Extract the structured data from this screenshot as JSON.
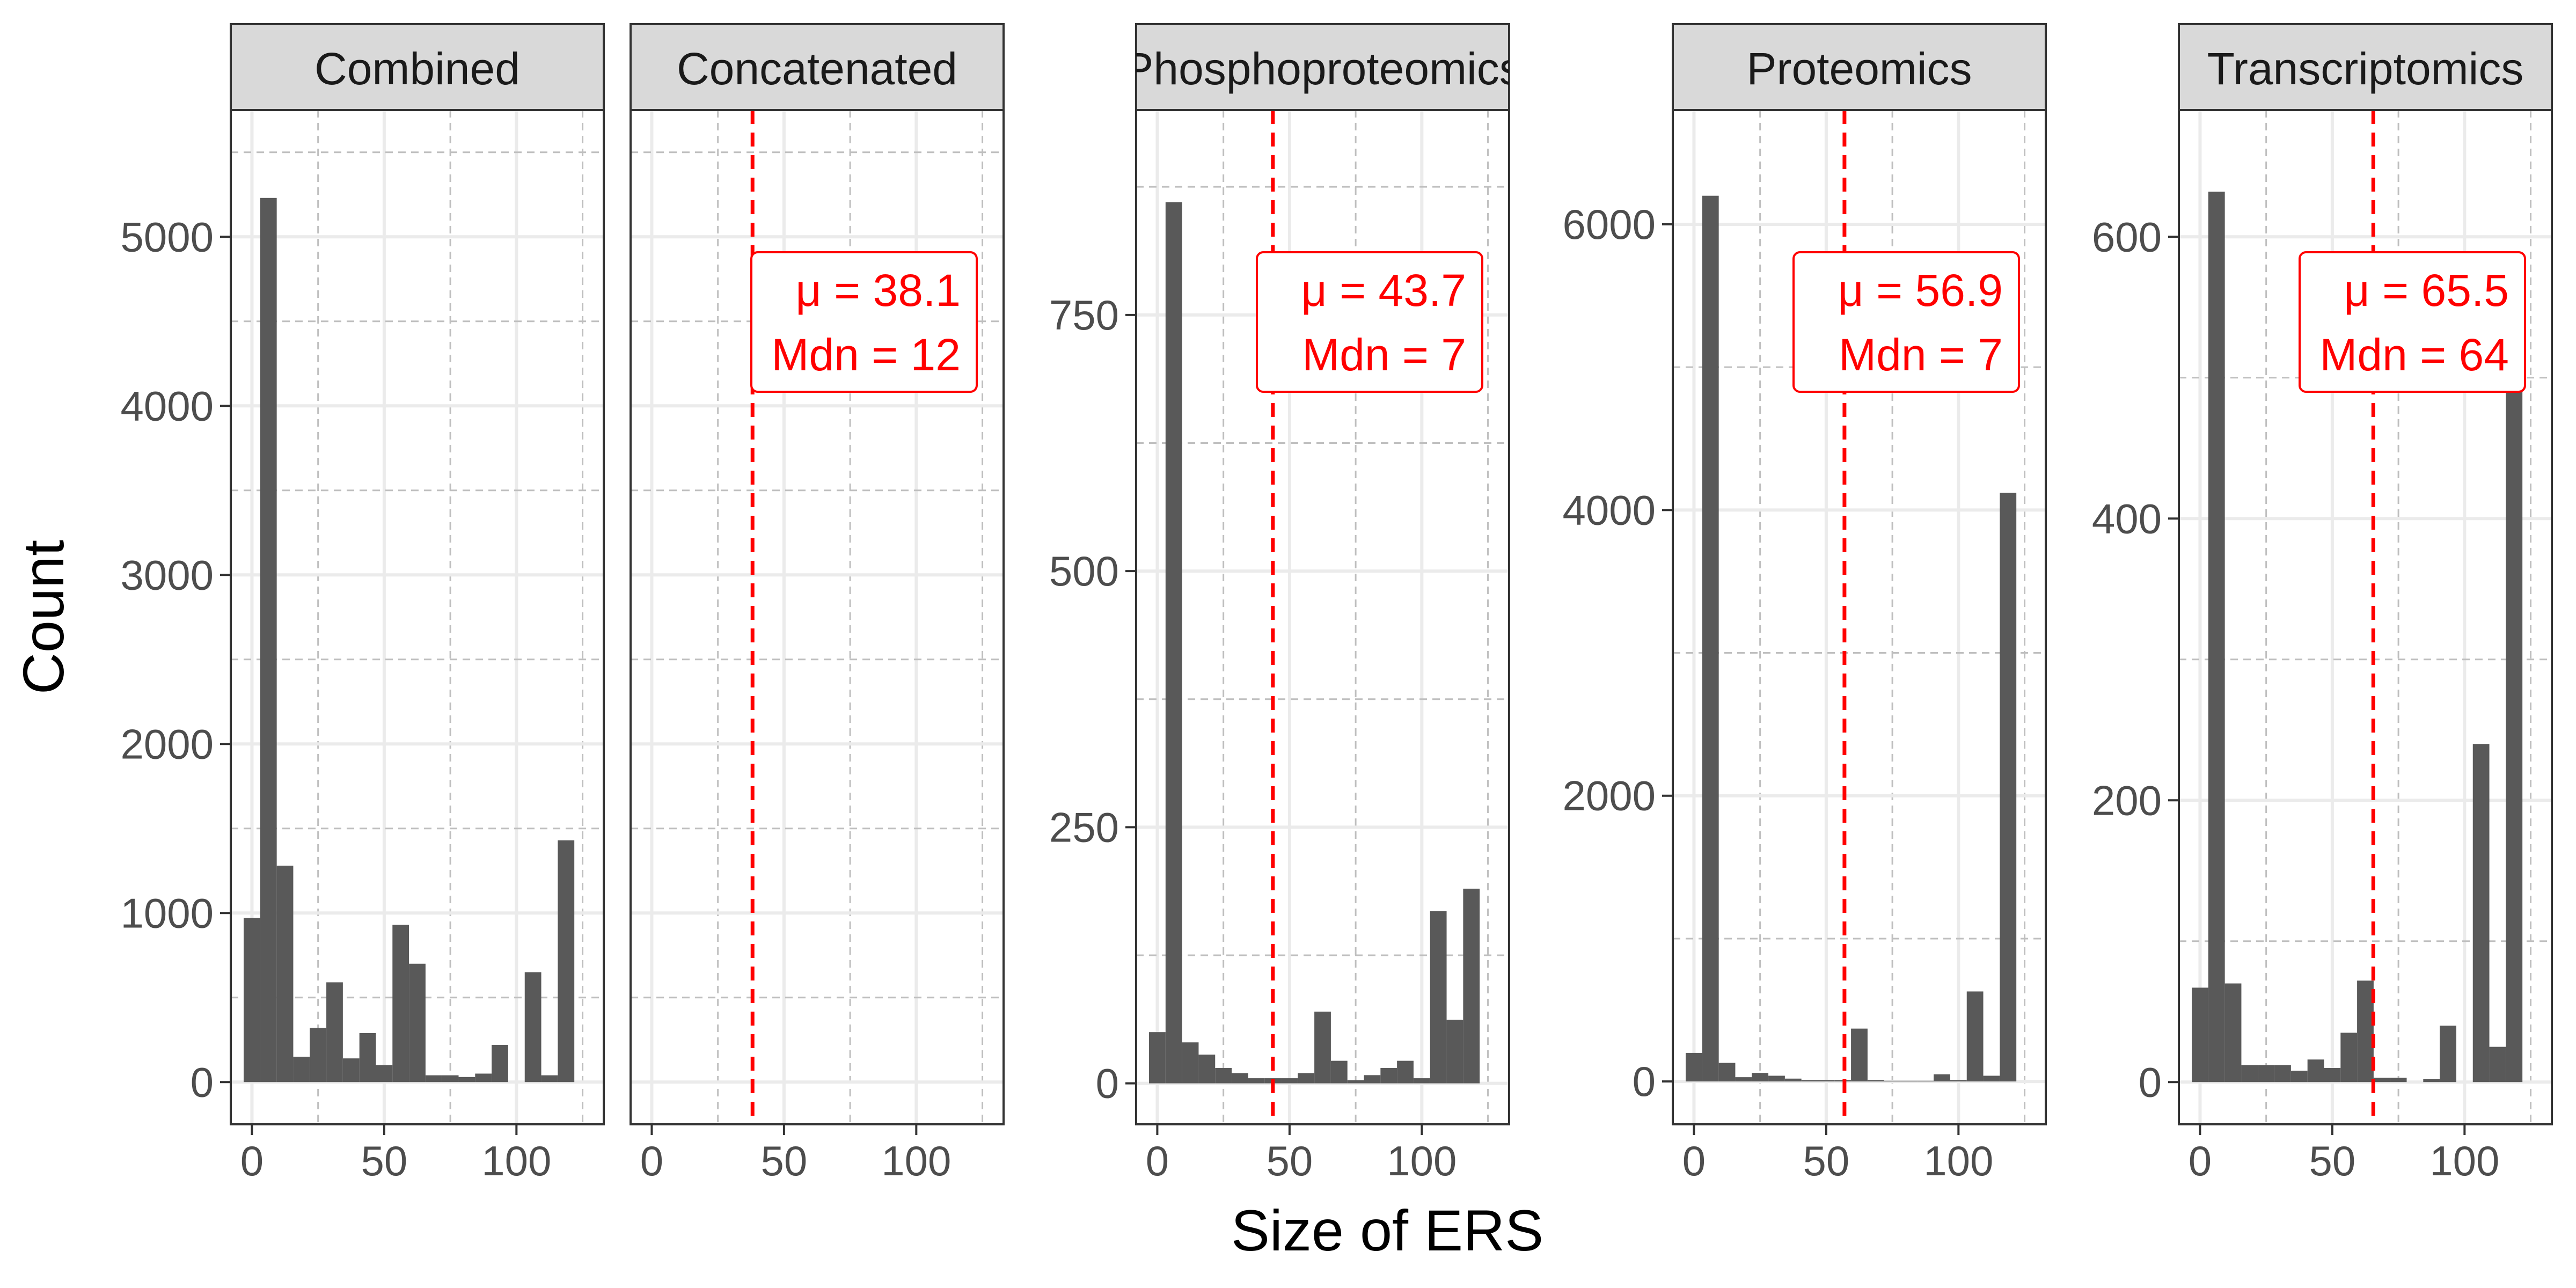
{
  "chart_data": {
    "type": "bar",
    "subtype": "faceted-histogram",
    "xlabel": "Size of ERS",
    "ylabel": "Count",
    "x_range": [
      -8,
      133
    ],
    "x_ticks": [
      0,
      50,
      100
    ],
    "bin_width": 6.25,
    "grid": true,
    "facets": [
      {
        "name": "Combined",
        "ylim": [
          -250,
          5750
        ],
        "y_ticks": [
          0,
          1000,
          2000,
          3000,
          4000,
          5000
        ],
        "bins": [
          0,
          6.25,
          12.5,
          18.75,
          25,
          31.25,
          37.5,
          43.75,
          50,
          56.25,
          62.5,
          68.75,
          75,
          81.25,
          87.5,
          93.75,
          100,
          106.25,
          112.5,
          118.75,
          125
        ],
        "values": [
          970,
          5230,
          1280,
          150,
          320,
          590,
          140,
          290,
          100,
          930,
          700,
          40,
          40,
          30,
          50,
          220,
          0,
          650,
          40,
          1430
        ],
        "mean_line": null,
        "annotation": null
      },
      {
        "name": "Concatenated",
        "ylim": [
          -250,
          5750
        ],
        "y_ticks": [],
        "bins": [],
        "values": [],
        "mean_line": 38.1,
        "annotation": {
          "mean": "μ = 38.1",
          "median": "Mdn = 12"
        }
      },
      {
        "name": "Phosphoproteomics",
        "ylim": [
          -40,
          950
        ],
        "y_ticks": [
          0,
          250,
          500,
          750
        ],
        "bins": [
          0,
          6.25,
          12.5,
          18.75,
          25,
          31.25,
          37.5,
          43.75,
          50,
          56.25,
          62.5,
          68.75,
          75,
          81.25,
          87.5,
          93.75,
          100,
          106.25,
          112.5,
          118.75,
          125
        ],
        "values": [
          50,
          860,
          40,
          28,
          15,
          10,
          5,
          5,
          5,
          10,
          70,
          22,
          3,
          8,
          15,
          22,
          5,
          168,
          62,
          190
        ],
        "mean_line": 43.7,
        "annotation": {
          "mean": "μ = 43.7",
          "median": "Mdn = 7"
        }
      },
      {
        "name": "Proteomics",
        "ylim": [
          -300,
          6800
        ],
        "y_ticks": [
          0,
          2000,
          4000,
          6000
        ],
        "bins": [
          0,
          6.25,
          12.5,
          18.75,
          25,
          31.25,
          37.5,
          43.75,
          50,
          56.25,
          62.5,
          68.75,
          75,
          81.25,
          87.5,
          93.75,
          100,
          106.25,
          112.5,
          118.75,
          125
        ],
        "values": [
          200,
          6200,
          130,
          30,
          60,
          40,
          20,
          10,
          10,
          10,
          370,
          10,
          5,
          5,
          5,
          50,
          10,
          630,
          40,
          4120
        ],
        "mean_line": 56.9,
        "annotation": {
          "mean": "μ = 56.9",
          "median": "Mdn = 7"
        }
      },
      {
        "name": "Transcriptomics",
        "ylim": [
          -30,
          690
        ],
        "y_ticks": [
          0,
          200,
          400,
          600
        ],
        "bins": [
          0,
          6.25,
          12.5,
          18.75,
          25,
          31.25,
          37.5,
          43.75,
          50,
          56.25,
          62.5,
          68.75,
          75,
          81.25,
          87.5,
          93.75,
          100,
          106.25,
          112.5,
          118.75,
          125
        ],
        "values": [
          67,
          632,
          70,
          12,
          12,
          12,
          8,
          16,
          10,
          35,
          72,
          3,
          3,
          0,
          2,
          40,
          0,
          240,
          25,
          555
        ],
        "mean_line": 65.5,
        "annotation": {
          "mean": "μ = 65.5",
          "median": "Mdn = 64"
        }
      }
    ]
  },
  "colors": {
    "bar": "#595959",
    "strip_bg": "#d9d9d9",
    "panel_border": "#333333",
    "grid_major": "#ebebeb",
    "grid_minor_dashed": "#bfbfbf",
    "mean_line": "#ff0000",
    "annotation": "#ff0000"
  }
}
